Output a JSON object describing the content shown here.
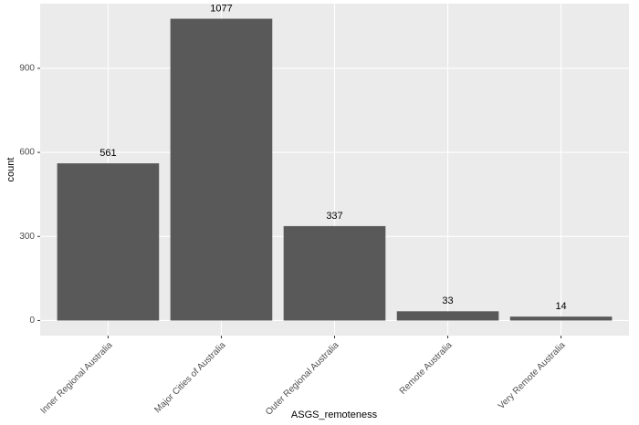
{
  "chart_data": {
    "type": "bar",
    "x_label": "ASGS_remoteness",
    "y_label": "count",
    "categories": [
      "Inner Regional Australia",
      "Major Cities of Australia",
      "Outer Regional Australia",
      "Remote Australia",
      "Very Remote Australia"
    ],
    "values": [
      561,
      1077,
      337,
      33,
      14
    ],
    "color": "#595959",
    "ylim": [
      -53.85,
      1130.85
    ],
    "yticks": [
      0,
      300,
      600,
      900
    ],
    "grid": true
  }
}
